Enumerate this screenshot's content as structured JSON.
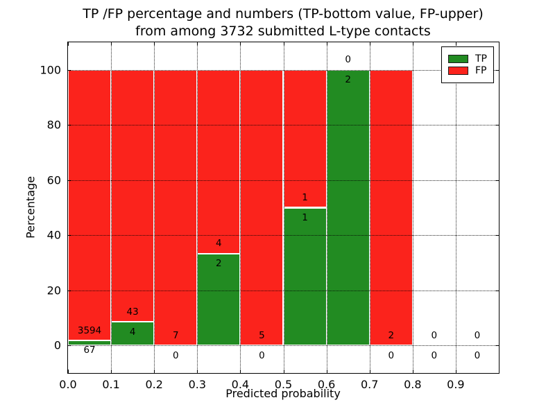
{
  "title": {
    "line1": "TP /FP percentage and numbers (TP-bottom value, FP-upper)",
    "line2": "from among 3732 submitted L-type contacts"
  },
  "chart_data": {
    "type": "bar",
    "stacked": true,
    "title": "TP /FP percentage and numbers (TP-bottom value, FP-upper)\nfrom among 3732 submitted L-type contacts",
    "xlabel": "Predicted probability",
    "ylabel": "Percentage",
    "total_contacts": 3732,
    "bin_edges": [
      0.0,
      0.1,
      0.2,
      0.3,
      0.4,
      0.5,
      0.6,
      0.7,
      0.8,
      0.9,
      1.0
    ],
    "series": [
      {
        "name": "TP",
        "color": "#228b22",
        "values": [
          67,
          4,
          0,
          2,
          0,
          1,
          2,
          0,
          0,
          0
        ]
      },
      {
        "name": "FP",
        "color": "#fb231c",
        "values": [
          3594,
          43,
          7,
          4,
          5,
          1,
          0,
          2,
          0,
          0
        ]
      }
    ],
    "percent_tp": [
      1.83,
      8.51,
      0.0,
      33.33,
      0.0,
      50.0,
      100.0,
      0.0,
      0.0,
      0.0
    ],
    "xlim": [
      0.0,
      1.0
    ],
    "ylim": [
      -10,
      110
    ],
    "x_tick_labels": [
      "0.0",
      "0.1",
      "0.2",
      "0.3",
      "0.4",
      "0.5",
      "0.6",
      "0.7",
      "0.8",
      "0.9"
    ],
    "y_tick_values": [
      0,
      20,
      40,
      60,
      80,
      100
    ],
    "y_tick_labels": [
      "0",
      "20",
      "40",
      "60",
      "80",
      "100"
    ],
    "grid": "dotted",
    "legend": {
      "position": "upper right",
      "entries": [
        "TP",
        "FP"
      ]
    },
    "annotation_offset_units": 3.6
  }
}
